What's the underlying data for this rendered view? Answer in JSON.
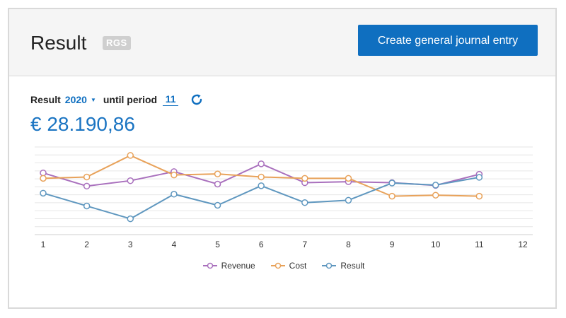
{
  "header": {
    "title": "Result",
    "badge": "RGS",
    "create_button": "Create general journal entry"
  },
  "filters": {
    "result_label": "Result",
    "year": "2020",
    "until_label": "until period",
    "period": "11"
  },
  "summary": {
    "amount": "€ 28.190,86"
  },
  "icons": {
    "refresh": "refresh-icon",
    "dropdown": "caret-down-icon"
  },
  "colors": {
    "accent": "#0f6fc0",
    "revenue": "#a970bd",
    "cost": "#e8a25a",
    "result": "#5f97bf"
  },
  "chart_data": {
    "type": "line",
    "x": [
      1,
      2,
      3,
      4,
      5,
      6,
      7,
      8,
      9,
      10,
      11,
      12
    ],
    "series": [
      {
        "name": "Revenue",
        "values": [
          0.48,
          0.09,
          0.25,
          0.52,
          0.15,
          0.75,
          0.19,
          0.22,
          0.19,
          0.11,
          0.44,
          null
        ]
      },
      {
        "name": "Cost",
        "values": [
          0.32,
          0.36,
          1.0,
          0.42,
          0.45,
          0.36,
          0.32,
          0.32,
          -0.21,
          -0.18,
          -0.21,
          null
        ]
      },
      {
        "name": "Result",
        "values": [
          -0.12,
          -0.5,
          -0.88,
          -0.15,
          -0.48,
          0.1,
          -0.4,
          -0.33,
          0.18,
          0.12,
          0.35,
          null
        ]
      }
    ],
    "legend": [
      "Revenue",
      "Cost",
      "Result"
    ],
    "legend_position": "bottom-center",
    "grid": true
  }
}
